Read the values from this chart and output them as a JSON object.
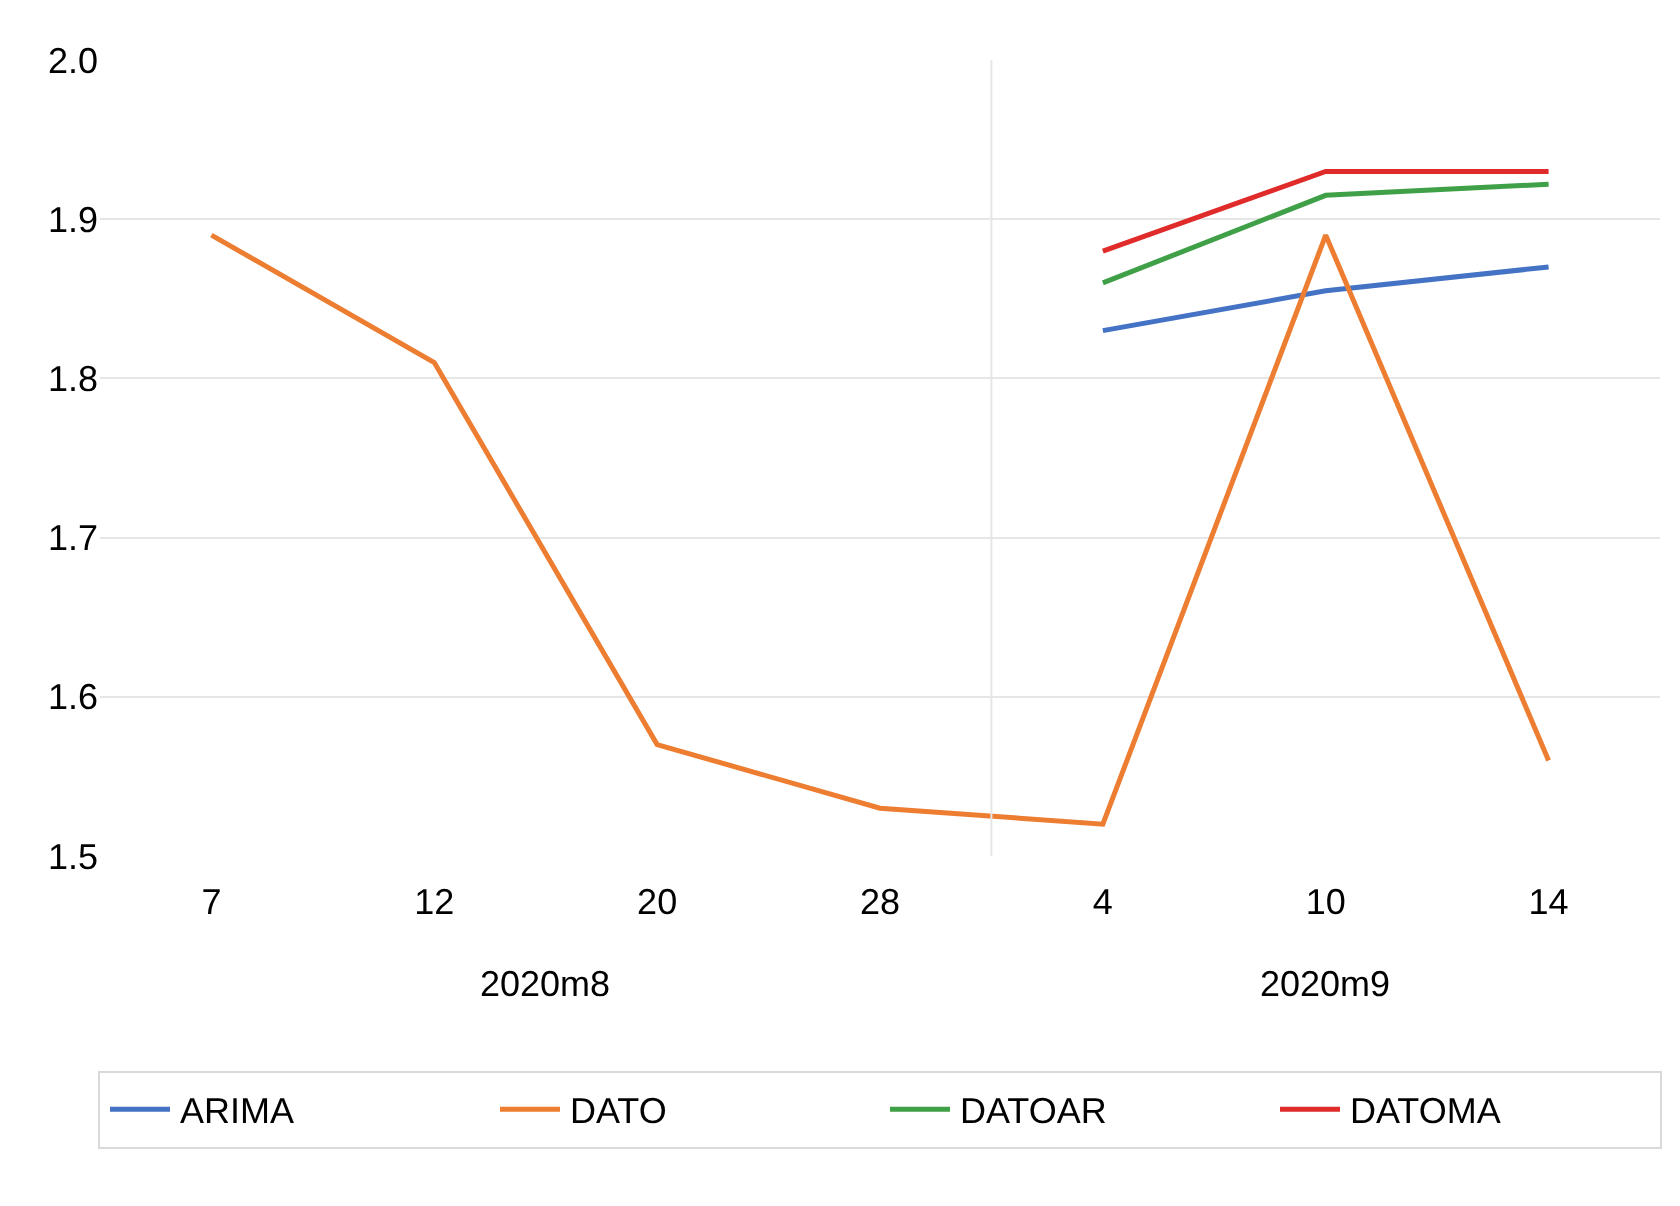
{
  "chart_data": {
    "type": "line",
    "categories": [
      "7",
      "12",
      "20",
      "28",
      "4",
      "10",
      "14"
    ],
    "series": [
      {
        "name": "ARIMA",
        "color": "#4472c4",
        "values": [
          null,
          null,
          null,
          null,
          1.83,
          1.855,
          1.87
        ]
      },
      {
        "name": "DATO",
        "color": "#ed7d31",
        "values": [
          1.89,
          1.81,
          1.57,
          1.53,
          1.52,
          1.89,
          1.56
        ]
      },
      {
        "name": "DATOAR",
        "color": "#3fa047",
        "values": [
          null,
          null,
          null,
          null,
          1.86,
          1.915,
          1.922
        ]
      },
      {
        "name": "DATOMA",
        "color": "#e02b2b",
        "values": [
          null,
          null,
          null,
          null,
          1.88,
          1.93,
          1.93
        ]
      }
    ],
    "annotations": [
      "2020m8",
      "2020m9"
    ],
    "ylim": [
      1.5,
      2.0
    ],
    "yticks": [
      {
        "value": 1.5,
        "label": "1.5"
      },
      {
        "value": 1.6,
        "label": "1.6"
      },
      {
        "value": 1.7,
        "label": "1.7"
      },
      {
        "value": 1.8,
        "label": "1.8"
      },
      {
        "value": 1.9,
        "label": "1.9"
      },
      {
        "value": 2.0,
        "label": "2.0"
      }
    ],
    "grid": "y",
    "legend": "bottom",
    "marker": "none",
    "line_style": "solid"
  }
}
